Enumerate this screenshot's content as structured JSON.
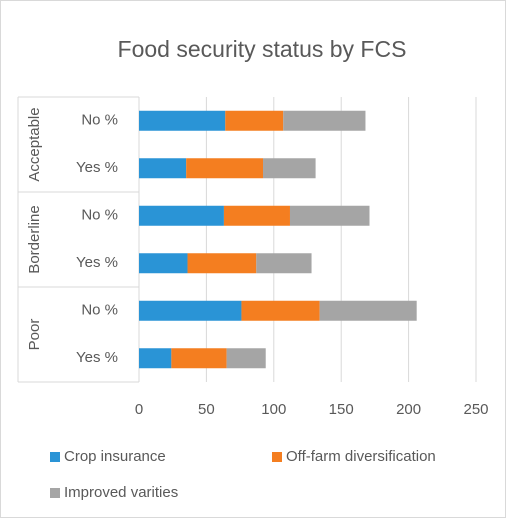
{
  "chart_data": {
    "type": "bar",
    "orientation": "horizontal",
    "stacked": true,
    "title": "Food security status by FCS",
    "groups": [
      {
        "label": "Acceptable",
        "categories": [
          "No %",
          "Yes %"
        ]
      },
      {
        "label": "Borderline",
        "categories": [
          "No %",
          "Yes %"
        ]
      },
      {
        "label": "Poor",
        "categories": [
          "No %",
          "Yes %"
        ]
      }
    ],
    "series": [
      {
        "name": "Crop insurance",
        "color": "#2a94d6",
        "values": [
          64,
          35,
          63,
          36,
          76,
          24
        ]
      },
      {
        "name": "Off-farm diversification",
        "color": "#f47e20",
        "values": [
          43,
          57,
          49,
          51,
          58,
          41
        ]
      },
      {
        "name": "Improved varities",
        "color": "#a5a5a5",
        "values": [
          61,
          39,
          59,
          41,
          72,
          29
        ]
      }
    ],
    "xlim": [
      0,
      250
    ],
    "xticks": [
      0,
      50,
      100,
      150,
      200,
      250
    ],
    "grid": true
  }
}
